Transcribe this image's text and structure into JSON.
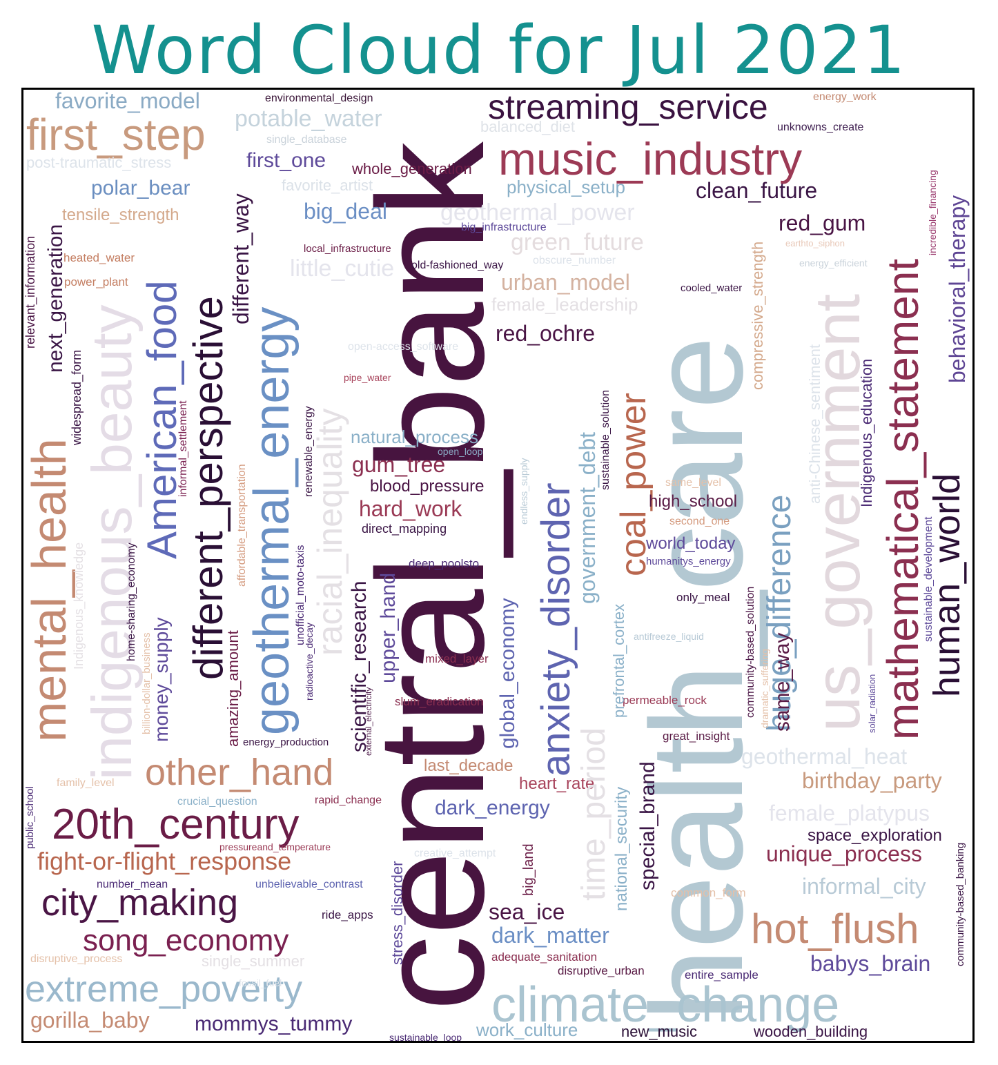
{
  "title": "Word Cloud for Jul 2021",
  "colors": {
    "title": "#14918f",
    "frame": "#000000",
    "background": "#ffffff"
  },
  "chart_data": {
    "type": "wordcloud",
    "title": "Word Cloud for Jul 2021",
    "words": [
      {
        "text": "central_bank",
        "color": "#47143f",
        "rot": 90
      },
      {
        "text": "health_care",
        "color": "#b3c8d2",
        "rot": 90
      },
      {
        "text": "music_industry",
        "color": "#9c3a55",
        "rot": 0
      },
      {
        "text": "streaming_service",
        "color": "#3a1240",
        "rot": 0
      },
      {
        "text": "climate_change",
        "color": "#aac4d0",
        "rot": 0
      },
      {
        "text": "us_government",
        "color": "#e2d8dd",
        "rot": 90
      },
      {
        "text": "mathematical_statement",
        "color": "#8b2f50",
        "rot": 90
      },
      {
        "text": "human_world",
        "color": "#2a0f35",
        "rot": 90
      },
      {
        "text": "behavioral_therapy",
        "color": "#5e4594",
        "rot": 90
      },
      {
        "text": "first_step",
        "color": "#c89a7e",
        "rot": 0
      },
      {
        "text": "favorite_model",
        "color": "#8aaac4",
        "rot": 0
      },
      {
        "text": "potable_water",
        "color": "#c5d3dc",
        "rot": 0
      },
      {
        "text": "environmental_design",
        "color": "#3a1538",
        "rot": 0
      },
      {
        "text": "balanced_diet",
        "color": "#dfe3e8",
        "rot": 0
      },
      {
        "text": "energy_work",
        "color": "#c48a72",
        "rot": 0
      },
      {
        "text": "unknowns_create",
        "color": "#3c1c4e",
        "rot": 0
      },
      {
        "text": "incredible_financing",
        "color": "#9a3a6e",
        "rot": 90
      },
      {
        "text": "single_database",
        "color": "#c9d2da",
        "rot": 0
      },
      {
        "text": "post-traumatic_stress",
        "color": "#dde3ea",
        "rot": 0
      },
      {
        "text": "first_one",
        "color": "#5e4a9a",
        "rot": 0
      },
      {
        "text": "whole_generation",
        "color": "#6a1c46",
        "rot": 0
      },
      {
        "text": "favorite_artist",
        "color": "#dbe1e8",
        "rot": 0
      },
      {
        "text": "physical_setup",
        "color": "#8ab0c8",
        "rot": 0
      },
      {
        "text": "clean_future",
        "color": "#3a1545",
        "rot": 0
      },
      {
        "text": "polar_bear",
        "color": "#6a8ec0",
        "rot": 0
      },
      {
        "text": "tensile_strength",
        "color": "#d4a98c",
        "rot": 0
      },
      {
        "text": "big_deal",
        "color": "#6a8ec4",
        "rot": 0
      },
      {
        "text": "geothermal_power",
        "color": "#e4e4ec",
        "rot": 0
      },
      {
        "text": "big_infrastructure",
        "color": "#5e4a9a",
        "rot": 0
      },
      {
        "text": "red_gum",
        "color": "#4a1545",
        "rot": 0
      },
      {
        "text": "green_future",
        "color": "#e4dcde",
        "rot": 0
      },
      {
        "text": "earthto_siphon",
        "color": "#e8c8b8",
        "rot": 0
      },
      {
        "text": "local_infrastructure",
        "color": "#6a1c46",
        "rot": 0
      },
      {
        "text": "heated_water",
        "color": "#c47e62",
        "rot": 0
      },
      {
        "text": "little_cutie",
        "color": "#e4e4ec",
        "rot": 0
      },
      {
        "text": "old-fashioned_way",
        "color": "#3a1545",
        "rot": 0
      },
      {
        "text": "obscure_number",
        "color": "#dde3ea",
        "rot": 0
      },
      {
        "text": "energy_efficient",
        "color": "#c9d2da",
        "rot": 0
      },
      {
        "text": "power_plant",
        "color": "#c47e62",
        "rot": 0
      },
      {
        "text": "urban_model",
        "color": "#d4b2a0",
        "rot": 0
      },
      {
        "text": "cooled_water",
        "color": "#3a1545",
        "rot": 0
      },
      {
        "text": "female_leadership",
        "color": "#e4e0e4",
        "rot": 0
      },
      {
        "text": "red_ochre",
        "color": "#4a1545",
        "rot": 0
      },
      {
        "text": "relevant_information",
        "color": "#4a1545",
        "rot": 90
      },
      {
        "text": "next_generation",
        "color": "#3a1545",
        "rot": 90
      },
      {
        "text": "indigenous_beauty",
        "color": "#e4dce6",
        "rot": 90
      },
      {
        "text": "American_food",
        "color": "#5e6ab8",
        "rot": 90
      },
      {
        "text": "different_perspective",
        "color": "#2a0f35",
        "rot": 90
      },
      {
        "text": "different_way",
        "color": "#3a1545",
        "rot": 90
      },
      {
        "text": "geothermal_energy",
        "color": "#6a90c4",
        "rot": 90
      },
      {
        "text": "racial_inequality",
        "color": "#e4e0e4",
        "rot": 90
      },
      {
        "text": "open-access_software",
        "color": "#dde3ea",
        "rot": 0
      },
      {
        "text": "pipe_water",
        "color": "#a8445c",
        "rot": 0
      },
      {
        "text": "anxiety_disorder",
        "color": "#5e64b0",
        "rot": 90
      },
      {
        "text": "coal_power",
        "color": "#b8664e",
        "rot": 90
      },
      {
        "text": "huge_difference",
        "color": "#7aa0c0",
        "rot": 90
      },
      {
        "text": "compressive_strength",
        "color": "#d4a98c",
        "rot": 90
      },
      {
        "text": "anti-Chinese_sentiment",
        "color": "#dde3ea",
        "rot": 90
      },
      {
        "text": "Indigenous_education",
        "color": "#4a2a74",
        "rot": 90
      },
      {
        "text": "mental_health",
        "color": "#c48a72",
        "rot": 90
      },
      {
        "text": "widespread_form",
        "color": "#3a1545",
        "rot": 90
      },
      {
        "text": "informal_settlement",
        "color": "#7a2050",
        "rot": 90
      },
      {
        "text": "natural_process",
        "color": "#8ab0c8",
        "rot": 0
      },
      {
        "text": "open_loop",
        "color": "#8aaac4",
        "rot": 0
      },
      {
        "text": "gum_tree",
        "color": "#8b2f50",
        "rot": 0
      },
      {
        "text": "blood_pressure",
        "color": "#4a1545",
        "rot": 0
      },
      {
        "text": "hard_work",
        "color": "#9a3a55",
        "rot": 0
      },
      {
        "text": "direct_mapping",
        "color": "#3a1545",
        "rot": 0
      },
      {
        "text": "same_level",
        "color": "#e4c0a8",
        "rot": 0
      },
      {
        "text": "high_school",
        "color": "#5a1c46",
        "rot": 0
      },
      {
        "text": "second_one",
        "color": "#d49a7e",
        "rot": 0
      },
      {
        "text": "world_today",
        "color": "#5e4a9a",
        "rot": 0
      },
      {
        "text": "humanitys_energy",
        "color": "#5e4a9a",
        "rot": 0
      },
      {
        "text": "only_meal",
        "color": "#3a1545",
        "rot": 0
      },
      {
        "text": "deep_poolsto",
        "color": "#4a2a74",
        "rot": 0
      },
      {
        "text": "antifreeze_liquid",
        "color": "#b8cad6",
        "rot": 0
      },
      {
        "text": "permeable_rock",
        "color": "#9a3a55",
        "rot": 0
      },
      {
        "text": "great_insight",
        "color": "#5a1c46",
        "rot": 0
      },
      {
        "text": "geothermal_heat",
        "color": "#dde3ea",
        "rot": 0
      },
      {
        "text": "birthday_party",
        "color": "#c89a7e",
        "rot": 0
      },
      {
        "text": "female_platypus",
        "color": "#e4e4ec",
        "rot": 0
      },
      {
        "text": "space_exploration",
        "color": "#3a1545",
        "rot": 0
      },
      {
        "text": "unique_process",
        "color": "#8b2f50",
        "rot": 0
      },
      {
        "text": "informal_city",
        "color": "#b8cad6",
        "rot": 0
      },
      {
        "text": "hot_flush",
        "color": "#c48a72",
        "rot": 0
      },
      {
        "text": "babys_brain",
        "color": "#5e4a9a",
        "rot": 0
      },
      {
        "text": "entire_sample",
        "color": "#4a2a74",
        "rot": 0
      },
      {
        "text": "new_music",
        "color": "#2a0f35",
        "rot": 0
      },
      {
        "text": "wooden_building",
        "color": "#3a1545",
        "rot": 0
      },
      {
        "text": "work_culture",
        "color": "#8ab0c8",
        "rot": 0
      },
      {
        "text": "common_form",
        "color": "#e4c0a8",
        "rot": 0
      },
      {
        "text": "other_hand",
        "color": "#c48a72",
        "rot": 0
      },
      {
        "text": "20th_century",
        "color": "#6a1c46",
        "rot": 0
      },
      {
        "text": "fight-or-flight_response",
        "color": "#b8664e",
        "rot": 0
      },
      {
        "text": "city_making",
        "color": "#4a1545",
        "rot": 0
      },
      {
        "text": "song_economy",
        "color": "#7a2050",
        "rot": 0
      },
      {
        "text": "extreme_poverty",
        "color": "#9ab8cc",
        "rot": 0
      },
      {
        "text": "gorilla_baby",
        "color": "#c48a72",
        "rot": 0
      },
      {
        "text": "mommys_tummy",
        "color": "#4a2a74",
        "rot": 0
      },
      {
        "text": "sustainable_loop",
        "color": "#4a2a74",
        "rot": 0
      },
      {
        "text": "family_level",
        "color": "#e4c0a8",
        "rot": 0
      },
      {
        "text": "crucial_question",
        "color": "#8ab0c8",
        "rot": 0
      },
      {
        "text": "rapid_change",
        "color": "#8b2f50",
        "rot": 0
      },
      {
        "text": "pressureand_temperature",
        "color": "#9a3a55",
        "rot": 0
      },
      {
        "text": "number_mean",
        "color": "#4a2a74",
        "rot": 0
      },
      {
        "text": "unbelievable_contrast",
        "color": "#5e64b0",
        "rot": 0
      },
      {
        "text": "ride_apps",
        "color": "#3a1545",
        "rot": 0
      },
      {
        "text": "disruptive_process",
        "color": "#e4c0a8",
        "rot": 0
      },
      {
        "text": "single_summer",
        "color": "#e4e0e4",
        "rot": 0
      },
      {
        "text": "fossil_fuel",
        "color": "#dde3ea",
        "rot": 0
      },
      {
        "text": "last_decade",
        "color": "#c48a72",
        "rot": 0
      },
      {
        "text": "heart_rate",
        "color": "#a8445c",
        "rot": 0
      },
      {
        "text": "dark_energy",
        "color": "#5e64b0",
        "rot": 0
      },
      {
        "text": "creative_attempt",
        "color": "#dde3ea",
        "rot": 0
      },
      {
        "text": "sea_ice",
        "color": "#4a1545",
        "rot": 0
      },
      {
        "text": "dark_matter",
        "color": "#6a8ec4",
        "rot": 0
      },
      {
        "text": "adequate_sanitation",
        "color": "#8b2f50",
        "rot": 0
      },
      {
        "text": "disruptive_urban",
        "color": "#5a1c46",
        "rot": 0
      },
      {
        "text": "mixed_layer",
        "color": "#8b2f50",
        "rot": 0
      },
      {
        "text": "slum_eradication",
        "color": "#8b2f50",
        "rot": 0
      },
      {
        "text": "energy_production",
        "color": "#3a1545",
        "rot": 0
      },
      {
        "text": "scientific_research",
        "color": "#3a1545",
        "rot": 90
      },
      {
        "text": "upper_hand",
        "color": "#5e4a9a",
        "rot": 90
      },
      {
        "text": "global_economy",
        "color": "#5e64b0",
        "rot": 90
      },
      {
        "text": "government_debt",
        "color": "#8ab0c8",
        "rot": 90
      },
      {
        "text": "time_period",
        "color": "#e4e0e4",
        "rot": 90
      },
      {
        "text": "prefrontal_cortex",
        "color": "#8ab0c8",
        "rot": 90
      },
      {
        "text": "national_security",
        "color": "#8ab0c8",
        "rot": 90
      },
      {
        "text": "special_brand",
        "color": "#3a1545",
        "rot": 90
      },
      {
        "text": "same_way",
        "color": "#5a1c46",
        "rot": 90
      },
      {
        "text": "stress_disorder",
        "color": "#5e4a9a",
        "rot": 90
      },
      {
        "text": "big_land",
        "color": "#6a1c46",
        "rot": 90
      },
      {
        "text": "money_supply",
        "color": "#5e4a9a",
        "rot": 90
      },
      {
        "text": "amazing_amount",
        "color": "#6a1c46",
        "rot": 90
      },
      {
        "text": "Indigenous_knowledge",
        "color": "#e4e0e4",
        "rot": 90
      },
      {
        "text": "home-sharing_economy",
        "color": "#3a1545",
        "rot": 90
      },
      {
        "text": "billion-dollar_business",
        "color": "#e4c0a8",
        "rot": 90
      },
      {
        "text": "affordable_transportation",
        "color": "#d49a7e",
        "rot": 90
      },
      {
        "text": "unofficial_moto-taxis",
        "color": "#4a2a74",
        "rot": 90
      },
      {
        "text": "radioactive_decay",
        "color": "#4a2a74",
        "rot": 90
      },
      {
        "text": "renewable_energy",
        "color": "#3a1545",
        "rot": 90
      },
      {
        "text": "external_electricity",
        "color": "#4a1545",
        "rot": 90
      },
      {
        "text": "endless_supply",
        "color": "#b8cad6",
        "rot": 90
      },
      {
        "text": "sustainable_solution",
        "color": "#3a1545",
        "rot": 90
      },
      {
        "text": "community-based_solution",
        "color": "#4a1545",
        "rot": 90
      },
      {
        "text": "dramatic_suffering",
        "color": "#e4c0a8",
        "rot": 90
      },
      {
        "text": "sustainable_development",
        "color": "#5e4a9a",
        "rot": 90
      },
      {
        "text": "solar_radiation",
        "color": "#5e4a9a",
        "rot": 90
      },
      {
        "text": "community-based_banking",
        "color": "#3a1545",
        "rot": 90
      },
      {
        "text": "public_school",
        "color": "#4a2a74",
        "rot": 90
      }
    ]
  }
}
